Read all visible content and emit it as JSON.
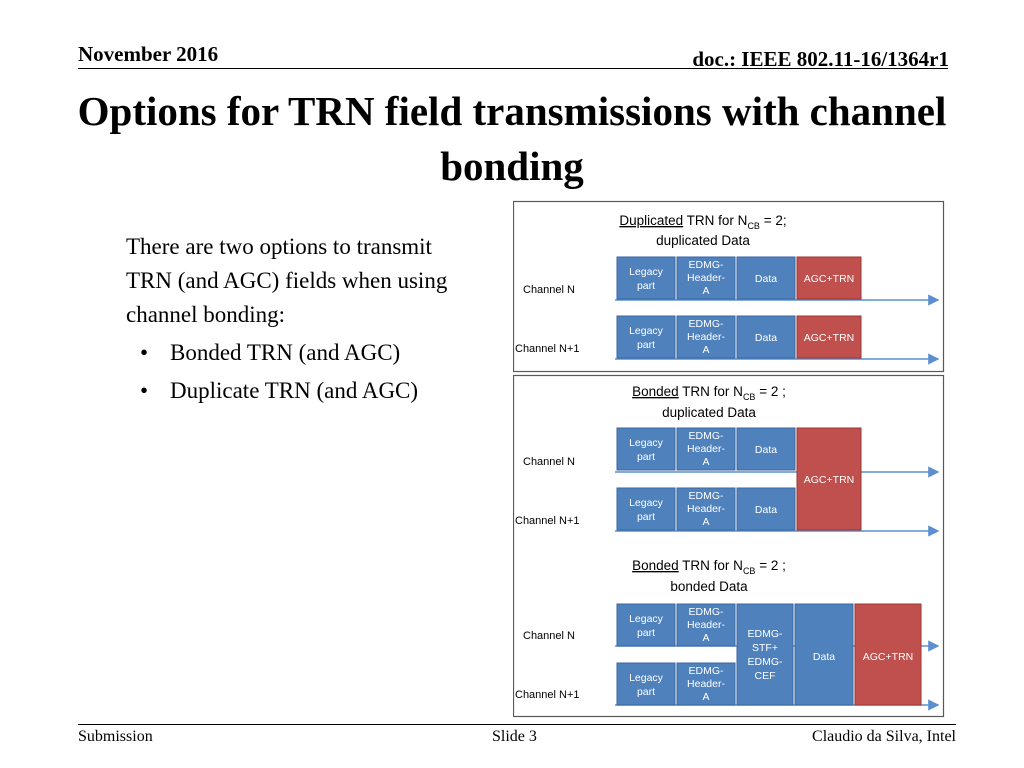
{
  "header": {
    "date": "November 2016",
    "doc": "doc.: IEEE 802.11-16/1364r1"
  },
  "title": "Options for TRN field transmissions with channel bonding",
  "body": {
    "intro": "There are two options to transmit TRN (and AGC) fields when using channel bonding:",
    "bullets": [
      "Bonded TRN (and AGC)",
      "Duplicate TRN (and AGC)"
    ]
  },
  "diagram": {
    "colors": {
      "blue": "#4f81bd",
      "blue_border": "#3a66a0",
      "red": "#c0504d",
      "red_border": "#9b3633",
      "arrow": "#5b8fd0",
      "frame": "#595959"
    },
    "panels": [
      {
        "title_underlined": "Duplicated",
        "title_rest": " TRN for N",
        "sub": "CB",
        "title_end": " = 2;",
        "title_line2": "duplicated Data",
        "channels": [
          "Channel N",
          "Channel N+1"
        ],
        "blocks": [
          "Legacy part",
          "EDMG-Header-A",
          "Data",
          "AGC+TRN"
        ]
      },
      {
        "title_underlined": "Bonded",
        "title_rest": " TRN for N",
        "sub": "CB",
        "title_end": " = 2 ;",
        "title_line2": "duplicated Data",
        "channels": [
          "Channel N",
          "Channel N+1"
        ],
        "blocks": [
          "Legacy part",
          "EDMG-Header-A",
          "Data",
          "AGC+TRN"
        ]
      },
      {
        "title_underlined": "Bonded",
        "title_rest": " TRN for N",
        "sub": "CB",
        "title_end": " = 2 ;",
        "title_line2": "bonded Data",
        "channels": [
          "Channel N",
          "Channel N+1"
        ],
        "blocks": [
          "Legacy part",
          "EDMG-Header-A",
          "EDMG-STF+ EDMG-CEF",
          "Data",
          "AGC+TRN"
        ]
      }
    ]
  },
  "footer": {
    "left": "Submission",
    "center": "Slide 3",
    "right": "Claudio da Silva, Intel"
  }
}
